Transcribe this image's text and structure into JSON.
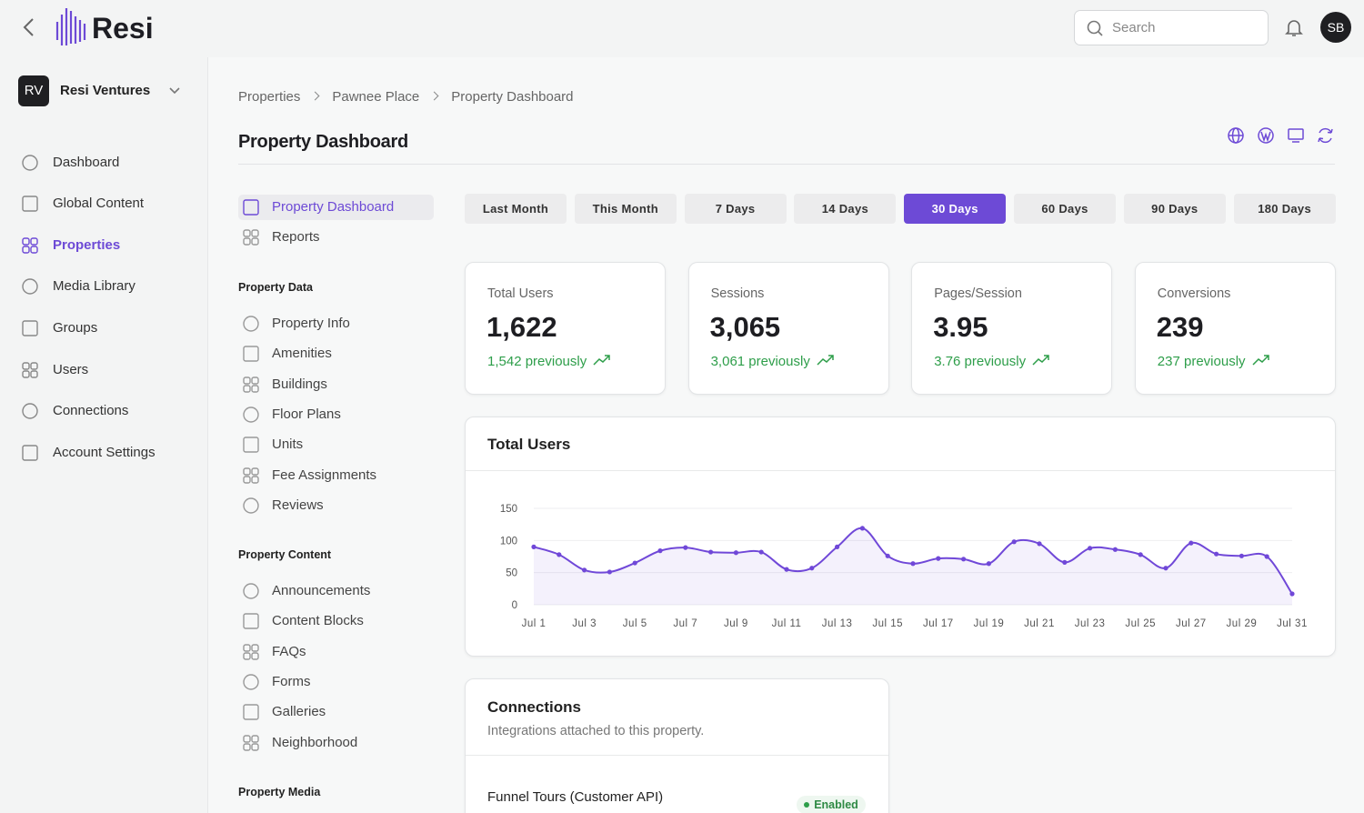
{
  "header": {
    "logo": "Resi",
    "search_placeholder": "Search",
    "avatar": "SB"
  },
  "sidebar": {
    "org_initials": "RV",
    "org_name": "Resi Ventures",
    "nav": [
      "Dashboard",
      "Global Content",
      "Properties",
      "Media Library",
      "Groups",
      "Users",
      "Connections",
      "Account Settings"
    ]
  },
  "breadcrumb": [
    "Properties",
    "Pawnee Place",
    "Property Dashboard"
  ],
  "page_title": "Property Dashboard",
  "subnav": {
    "items": [
      "Property Dashboard",
      "Reports"
    ],
    "sections": [
      {
        "title": "Property Data",
        "items": [
          "Property Info",
          "Amenities",
          "Buildings",
          "Floor Plans",
          "Units",
          "Fee Assignments",
          "Reviews"
        ]
      },
      {
        "title": "Property Content",
        "items": [
          "Announcements",
          "Content Blocks",
          "FAQs",
          "Forms",
          "Galleries",
          "Neighborhood"
        ]
      },
      {
        "title": "Property Media",
        "items": []
      }
    ]
  },
  "ranges": [
    "Last Month",
    "This Month",
    "7 Days",
    "14 Days",
    "30 Days",
    "60 Days",
    "90 Days",
    "180 Days"
  ],
  "stats": [
    {
      "label": "Total Users",
      "value": "1,622",
      "previous": "1,542 previously"
    },
    {
      "label": "Sessions",
      "value": "3,065",
      "previous": "3,061 previously"
    },
    {
      "label": "Pages/Session",
      "value": "3.95",
      "previous": "3.76 previously"
    },
    {
      "label": "Conversions",
      "value": "239",
      "previous": "237 previously"
    }
  ],
  "chart_data": {
    "type": "line",
    "title": "Total Users",
    "categories": [
      "Jul 1",
      null,
      "Jul 3",
      null,
      "Jul 5",
      null,
      "Jul 7",
      null,
      "Jul 9",
      null,
      "Jul 11",
      null,
      "Jul 13",
      null,
      "Jul 15",
      null,
      "Jul 17",
      null,
      "Jul 19",
      null,
      "Jul 21",
      null,
      "Jul 23",
      null,
      "Jul 25",
      null,
      "Jul 27",
      null,
      "Jul 29",
      null,
      "Jul 31"
    ],
    "values": [
      90,
      78,
      54,
      51,
      65,
      84,
      89,
      82,
      81,
      82,
      55,
      57,
      90,
      119,
      76,
      64,
      72,
      71,
      64,
      98,
      95,
      66,
      88,
      86,
      78,
      57,
      96,
      79,
      76,
      75,
      17
    ],
    "color": "#7048d8",
    "ylim": [
      0,
      150
    ],
    "yticks": [
      0,
      50,
      100,
      150
    ],
    "grid": true
  },
  "connections": {
    "title": "Connections",
    "subtitle": "Integrations attached to this property.",
    "items": [
      {
        "name": "Funnel Tours (Customer API)",
        "status": "Enabled"
      }
    ]
  }
}
